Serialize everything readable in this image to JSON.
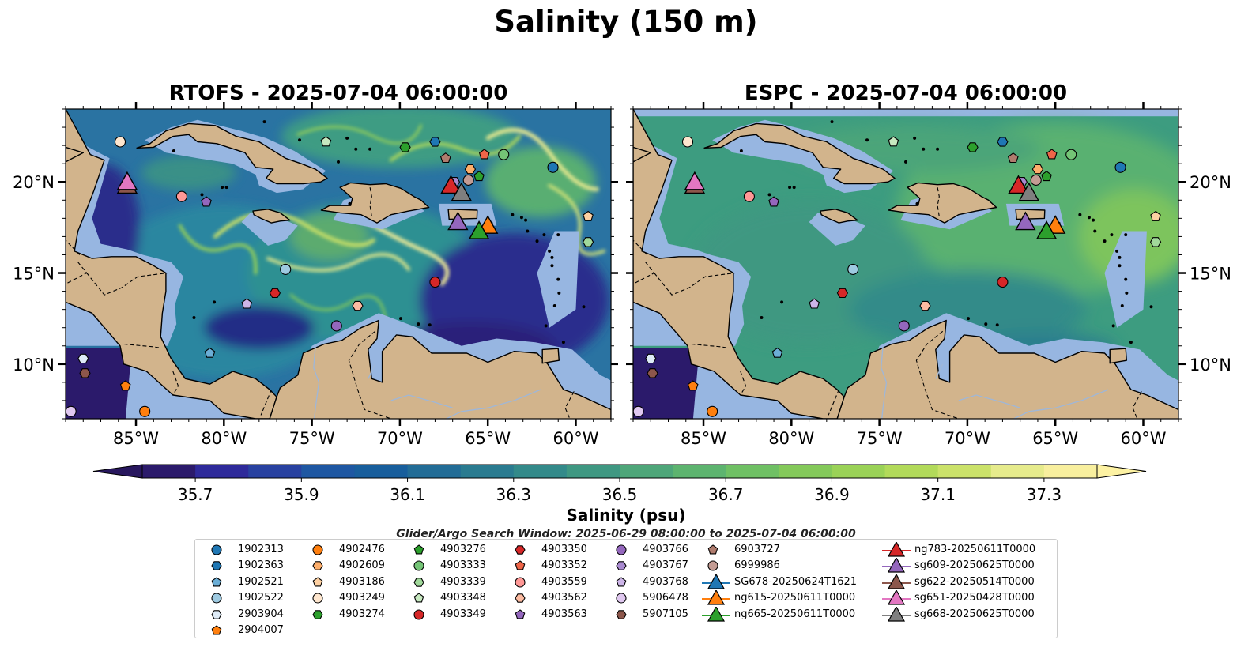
{
  "title": "Salinity (150 m)",
  "panels": [
    {
      "title": "RTOFS - 2025-07-04 06:00:00"
    },
    {
      "title": "ESPC - 2025-07-04 06:00:00"
    }
  ],
  "map": {
    "lon_ticks": [
      "85°W",
      "80°W",
      "75°W",
      "70°W",
      "65°W",
      "60°W"
    ],
    "lon_tick_values": [
      -85,
      -80,
      -75,
      -70,
      -65,
      -60
    ],
    "lat_ticks": [
      "20°N",
      "15°N",
      "10°N"
    ],
    "lat_tick_values": [
      20,
      15,
      10
    ],
    "lon_range": [
      -89,
      -58
    ],
    "lat_range": [
      7,
      24
    ],
    "colors": {
      "ocean_shelf": "#97b6e1",
      "land": "#d2b48c",
      "coast": "#000000"
    }
  },
  "colorbar": {
    "label": "Salinity (psu)",
    "range": [
      35.6,
      37.4
    ],
    "tick_values": [
      35.7,
      35.9,
      36.1,
      36.3,
      36.5,
      36.7,
      36.9,
      37.1,
      37.3
    ],
    "tick_labels": [
      "35.7",
      "35.9",
      "36.1",
      "36.3",
      "36.5",
      "36.7",
      "36.9",
      "37.1",
      "37.3"
    ],
    "colors": [
      "#2b1a6b",
      "#2e2a9a",
      "#2841a0",
      "#1e57a2",
      "#185e9c",
      "#226c96",
      "#2a7b90",
      "#338a8a",
      "#3f9882",
      "#4ea679",
      "#5db46f",
      "#6fc064",
      "#84c95a",
      "#9ad257",
      "#b2da5a",
      "#cbe26a",
      "#e6eb8c",
      "#f8ef9e"
    ],
    "under_color": "#28175e",
    "over_color": "#fdf2a3"
  },
  "search_window": "Glider/Argo Search Window: 2025-06-29 08:00:00 to 2025-07-04 06:00:00",
  "floats": [
    {
      "id": "1902313",
      "marker": "circle",
      "color": "#1f77b4",
      "lon": -61.3,
      "lat": 20.8
    },
    {
      "id": "1902363",
      "marker": "hexagon",
      "color": "#1f77b4",
      "lon": -68.0,
      "lat": 22.2
    },
    {
      "id": "1902521",
      "marker": "pentagon",
      "color": "#6baed6",
      "lon": -80.8,
      "lat": 10.6
    },
    {
      "id": "1902522",
      "marker": "circle",
      "color": "#9ecae1",
      "lon": -76.5,
      "lat": 15.2
    },
    {
      "id": "2903904",
      "marker": "hexagon",
      "color": "#deebf7",
      "lon": -88.0,
      "lat": 10.3
    },
    {
      "id": "2904007",
      "marker": "pentagon",
      "color": "#ff7f0e",
      "lon": -85.6,
      "lat": 8.8
    },
    {
      "id": "4902476",
      "marker": "circle",
      "color": "#ff7f0e",
      "lon": -84.5,
      "lat": 7.4
    },
    {
      "id": "4902609",
      "marker": "hexagon",
      "color": "#fdae6b",
      "lon": -66.0,
      "lat": 20.7
    },
    {
      "id": "4903186",
      "marker": "pentagon",
      "color": "#fdd0a2",
      "lon": -59.3,
      "lat": 18.1
    },
    {
      "id": "4903249",
      "marker": "circle",
      "color": "#fee6ce",
      "lon": -85.9,
      "lat": 22.2
    },
    {
      "id": "4903274",
      "marker": "hexagon",
      "color": "#2ca02c",
      "lon": -69.7,
      "lat": 21.9
    },
    {
      "id": "4903276",
      "marker": "pentagon",
      "color": "#2ca02c",
      "lon": -65.5,
      "lat": 20.3
    },
    {
      "id": "4903333",
      "marker": "circle",
      "color": "#74c476",
      "lon": -64.1,
      "lat": 21.5
    },
    {
      "id": "4903339",
      "marker": "hexagon",
      "color": "#a1d99b",
      "lon": -59.3,
      "lat": 16.7
    },
    {
      "id": "4903348",
      "marker": "pentagon",
      "color": "#c7e9c0",
      "lon": -74.2,
      "lat": 22.2
    },
    {
      "id": "4903349",
      "marker": "circle",
      "color": "#d62728",
      "lon": -68.0,
      "lat": 14.5
    },
    {
      "id": "4903350",
      "marker": "hexagon",
      "color": "#d62728",
      "lon": -77.1,
      "lat": 13.9
    },
    {
      "id": "4903352",
      "marker": "pentagon",
      "color": "#ef6548",
      "lon": -65.2,
      "lat": 21.5
    },
    {
      "id": "4903559",
      "marker": "circle",
      "color": "#ff9896",
      "lon": -82.4,
      "lat": 19.2
    },
    {
      "id": "4903562",
      "marker": "hexagon",
      "color": "#fcbba1",
      "lon": -72.4,
      "lat": 13.2
    },
    {
      "id": "4903563",
      "marker": "pentagon",
      "color": "#9467bd",
      "lon": -81.0,
      "lat": 18.9
    },
    {
      "id": "4903766",
      "marker": "circle",
      "color": "#9467bd",
      "lon": -73.6,
      "lat": 12.1
    },
    {
      "id": "4903767",
      "marker": "hexagon",
      "color": "#a98ad0",
      "lon": -66.9,
      "lat": 20.0
    },
    {
      "id": "4903768",
      "marker": "pentagon",
      "color": "#cdb5e8",
      "lon": -78.7,
      "lat": 13.3
    },
    {
      "id": "5906478",
      "marker": "circle",
      "color": "#e0c8f0",
      "lon": -88.7,
      "lat": 7.4
    },
    {
      "id": "5907105",
      "marker": "hexagon",
      "color": "#8c564b",
      "lon": -87.9,
      "lat": 9.5
    },
    {
      "id": "6903727",
      "marker": "pentagon",
      "color": "#b07c6e",
      "lon": -67.4,
      "lat": 21.3
    },
    {
      "id": "6999986",
      "marker": "circle",
      "color": "#c49c94",
      "lon": -66.1,
      "lat": 20.1
    }
  ],
  "gliders": [
    {
      "id": "SG678-20250624T1621",
      "color": "#1f77b4",
      "lon": -65.9,
      "lat": 17.5,
      "show": false
    },
    {
      "id": "ng615-20250611T0000",
      "color": "#ff7f0e",
      "lon": -65.0,
      "lat": 17.6,
      "show": true
    },
    {
      "id": "ng665-20250611T0000",
      "color": "#2ca02c",
      "lon": -65.5,
      "lat": 17.3,
      "show": true
    },
    {
      "id": "ng783-20250611T0000",
      "color": "#d62728",
      "lon": -67.1,
      "lat": 19.8,
      "show": true
    },
    {
      "id": "sg609-20250625T0000",
      "color": "#9467bd",
      "lon": -66.7,
      "lat": 17.8,
      "show": true
    },
    {
      "id": "sg622-20250514T0000",
      "color": "#8c564b",
      "lon": -85.5,
      "lat": 19.8,
      "show": true
    },
    {
      "id": "sg651-20250428T0000",
      "color": "#e377c2",
      "lon": -85.5,
      "lat": 20.0,
      "show": true
    },
    {
      "id": "sg668-20250625T0000",
      "color": "#7f7f7f",
      "lon": -66.5,
      "lat": 19.4,
      "show": true
    }
  ],
  "legend": {
    "columns": [
      [
        "1902313",
        "1902363",
        "1902521",
        "1902522",
        "2903904",
        "2904007"
      ],
      [
        "4902476",
        "4902609",
        "4903186",
        "4903249",
        "4903274"
      ],
      [
        "4903276",
        "4903333",
        "4903339",
        "4903348",
        "4903349"
      ],
      [
        "4903350",
        "4903352",
        "4903559",
        "4903562",
        "4903563"
      ],
      [
        "4903766",
        "4903767",
        "4903768",
        "5906478",
        "5907105"
      ],
      [
        "6903727",
        "6999986",
        "SG678-20250624T1621",
        "ng615-20250611T0000",
        "ng665-20250611T0000"
      ],
      [
        "ng783-20250611T0000",
        "sg609-20250625T0000",
        "sg622-20250514T0000",
        "sg651-20250428T0000",
        "sg668-20250625T0000"
      ]
    ]
  }
}
